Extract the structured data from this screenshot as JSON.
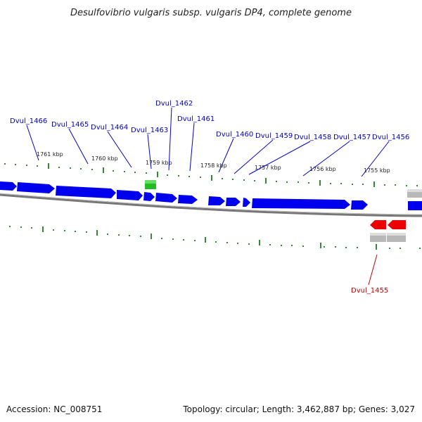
{
  "title": "Desulfovibrio vulgaris subsp. vulgaris DP4, complete genome",
  "footer": {
    "accession": "Accession: NC_008751",
    "summary": "Topology: circular; Length: 3,462,887 bp; Genes: 3,027"
  },
  "colors": {
    "forward_gene": "#0000ee",
    "highlight_gene": "#22bb22",
    "reverse_gene": "#ee0000",
    "rna_feature": "#b8b8b8",
    "tick": "#338833",
    "forward_label": "#0000cc",
    "reverse_label": "#cc0000",
    "backbone": "#777777"
  },
  "kbp_ticks": [
    "1761 kbp",
    "1760 kbp",
    "1759 kbp",
    "1758 kbp",
    "1757 kbp",
    "1756 kbp",
    "1755 kbp"
  ],
  "gene_labels": [
    {
      "label": "Dvul_1466",
      "strand": "forward"
    },
    {
      "label": "Dvul_1465",
      "strand": "forward"
    },
    {
      "label": "Dvul_1464",
      "strand": "forward"
    },
    {
      "label": "Dvul_1463",
      "strand": "forward"
    },
    {
      "label": "Dvul_1462",
      "strand": "forward"
    },
    {
      "label": "Dvul_1461",
      "strand": "forward"
    },
    {
      "label": "Dvul_1460",
      "strand": "forward"
    },
    {
      "label": "Dvul_1459",
      "strand": "forward"
    },
    {
      "label": "Dvul_1458",
      "strand": "forward"
    },
    {
      "label": "Dvul_1457",
      "strand": "forward"
    },
    {
      "label": "Dvul_1456",
      "strand": "forward"
    },
    {
      "label": "Dvul_1455",
      "strand": "reverse"
    }
  ]
}
